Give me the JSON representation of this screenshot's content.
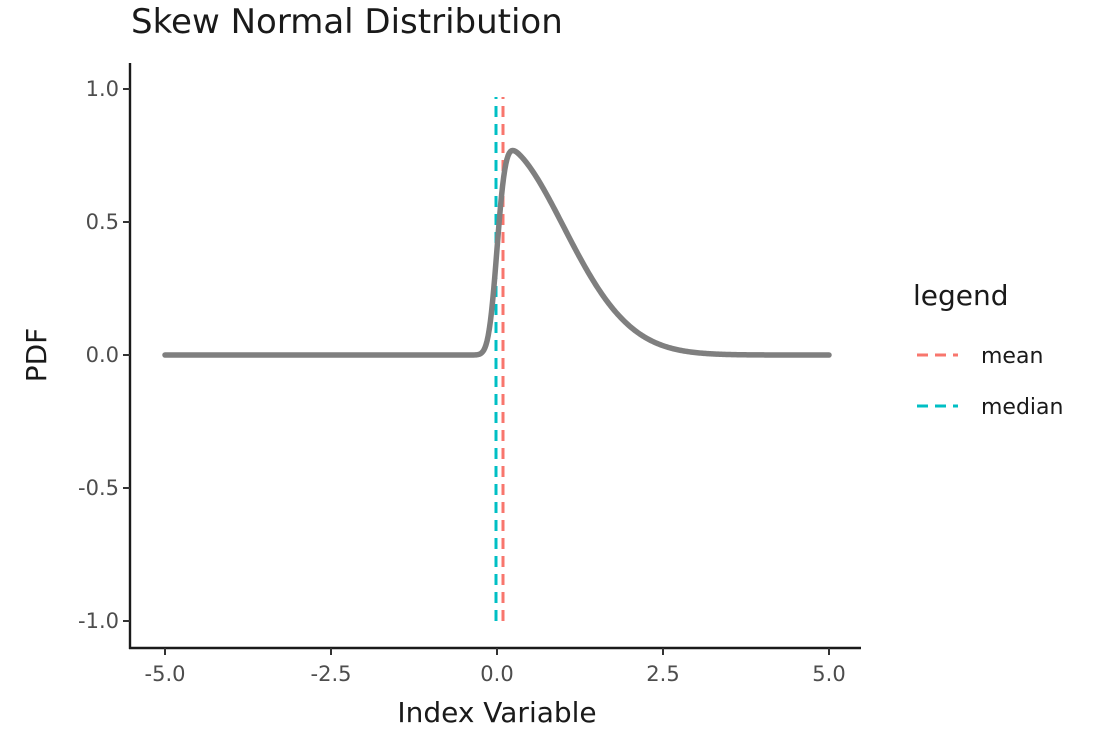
{
  "chart_data": {
    "type": "line",
    "title": "Skew Normal Distribution",
    "xlabel": "Index Variable",
    "ylabel": "PDF",
    "xlim": [
      -5.0,
      5.0
    ],
    "ylim": [
      -1.0,
      1.0
    ],
    "x_ticks": [
      "-5.0",
      "-2.5",
      "0.0",
      "2.5",
      "5.0"
    ],
    "y_ticks": [
      "-1.0",
      "-0.5",
      "0.0",
      "0.5",
      "1.0"
    ],
    "grid": false,
    "distribution": {
      "family": "skew-normal",
      "location": 0,
      "scale": 1,
      "shape": 10
    },
    "series": [
      {
        "color": "#7f7f7f",
        "line_style": "solid",
        "x": [
          -5.0,
          -0.2,
          -0.1,
          0.0,
          0.05,
          0.1,
          0.15,
          0.2,
          0.3,
          0.5,
          0.75,
          1.0,
          1.5,
          2.0,
          2.5,
          3.0,
          3.5,
          5.0
        ],
        "y": [
          0.0,
          0.0,
          0.05,
          0.4,
          0.66,
          0.77,
          0.79,
          0.78,
          0.76,
          0.7,
          0.6,
          0.48,
          0.26,
          0.11,
          0.035,
          0.008,
          0.001,
          0.0
        ]
      }
    ],
    "vlines": [
      {
        "name": "mean",
        "x": 0.79,
        "color": "#F8766D",
        "line_style": "dashed",
        "y_range": [
          -1.0,
          0.97
        ]
      },
      {
        "name": "median",
        "x": 0.67,
        "color": "#00BFC4",
        "line_style": "dashed",
        "y_range": [
          -1.0,
          0.97
        ]
      }
    ],
    "legend": {
      "title": "legend",
      "placement": "right",
      "entries": [
        {
          "label": "mean",
          "color": "#F8766D"
        },
        {
          "label": "median",
          "color": "#00BFC4"
        }
      ]
    }
  }
}
